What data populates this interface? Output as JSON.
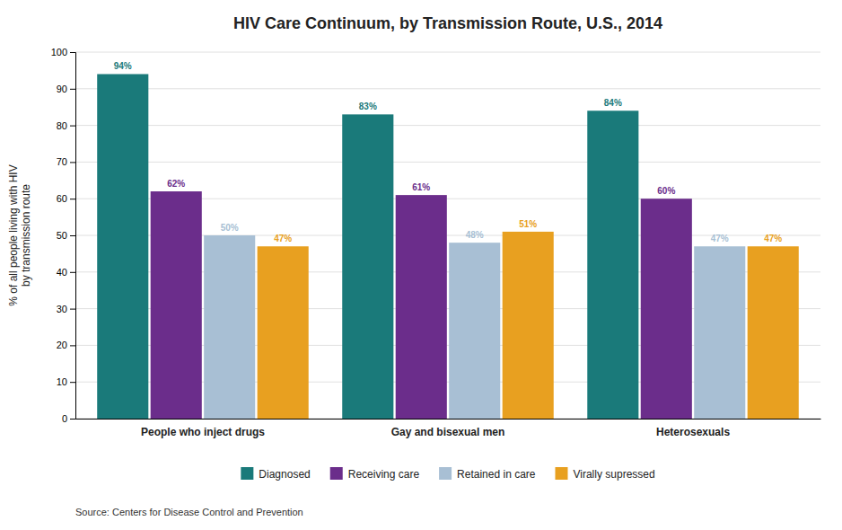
{
  "chart_data": {
    "type": "bar",
    "title": "HIV Care Continuum, by Transmission Route, U.S., 2014",
    "ylabel": "% of all people living with HIV\nby transmission route",
    "categories": [
      "People who inject drugs",
      "Gay and bisexual men",
      "Heterosexuals"
    ],
    "series": [
      {
        "name": "Diagnosed",
        "color": "#1a7a7a",
        "values": [
          94,
          83,
          84
        ],
        "value_labels": [
          "94%",
          "83%",
          "84%"
        ]
      },
      {
        "name": "Receiving care",
        "color": "#6b2d8b",
        "values": [
          62,
          61,
          60
        ],
        "value_labels": [
          "62%",
          "61%",
          "60%"
        ]
      },
      {
        "name": "Retained in care",
        "color": "#a8bfd4",
        "values": [
          50,
          48,
          47
        ],
        "value_labels": [
          "50%",
          "48%",
          "47%"
        ]
      },
      {
        "name": "Virally supressed",
        "color": "#e8a020",
        "values": [
          47,
          51,
          47
        ],
        "value_labels": [
          "47%",
          "51%",
          "47%"
        ]
      }
    ],
    "ylim": [
      0,
      100
    ],
    "yticks": [
      0,
      10,
      20,
      30,
      40,
      50,
      60,
      70,
      80,
      90,
      100
    ],
    "grid": true,
    "legend": "bottom",
    "data_labels": true,
    "annotations": [
      "Source: Centers for Disease Control and Prevention"
    ]
  }
}
